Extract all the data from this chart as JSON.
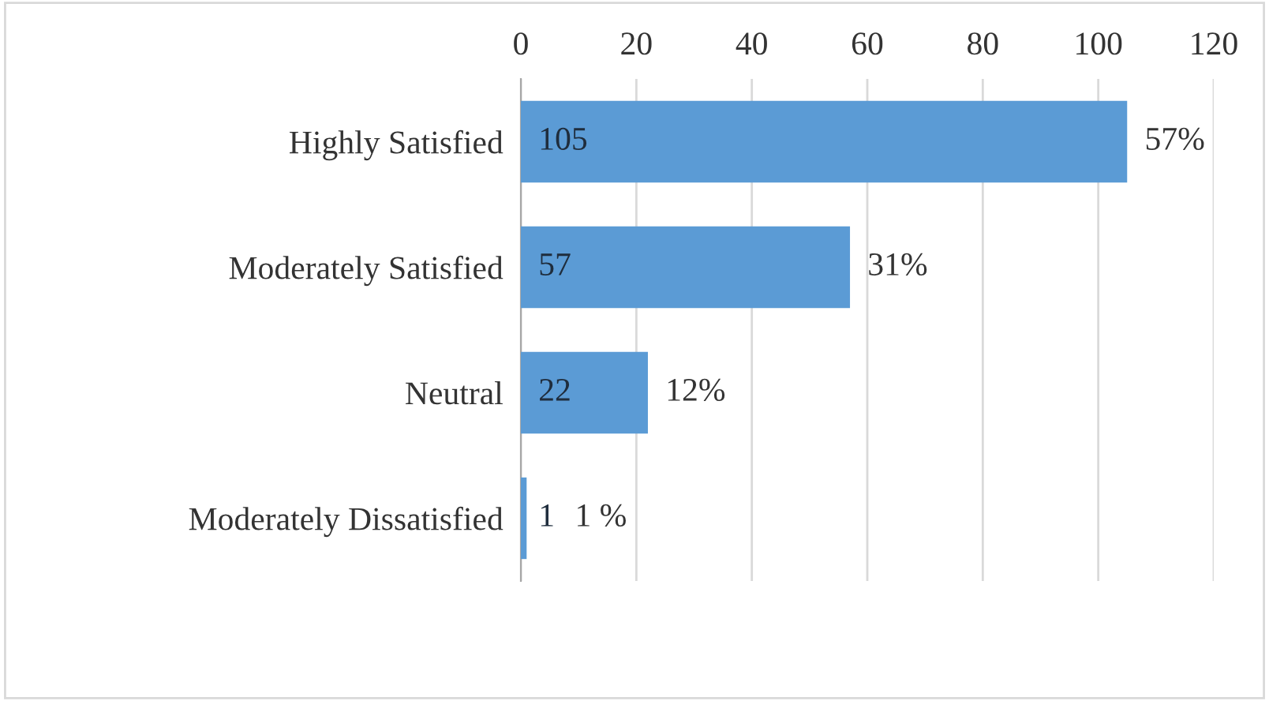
{
  "chart_data": {
    "type": "bar",
    "orientation": "horizontal",
    "categories": [
      "Highly Satisfied",
      "Moderately Satisfied",
      "Neutral",
      "Moderately Dissatisfied"
    ],
    "values": [
      105,
      57,
      22,
      1
    ],
    "color": "#5b9bd5",
    "xlim": [
      0,
      120
    ],
    "xticks": [
      0,
      20,
      40,
      60,
      80,
      100,
      120
    ],
    "grid": "x",
    "data_labels": true,
    "annotations": [
      {
        "text": "57%",
        "x": 105,
        "y": "Highly Satisfied"
      },
      {
        "text": "31%",
        "x": 57,
        "y": "Moderately Satisfied"
      },
      {
        "text": "12%",
        "x": 22,
        "y": "Neutral"
      },
      {
        "text": "1 %",
        "x": 1,
        "y": "Moderately Dissatisfied"
      }
    ]
  }
}
